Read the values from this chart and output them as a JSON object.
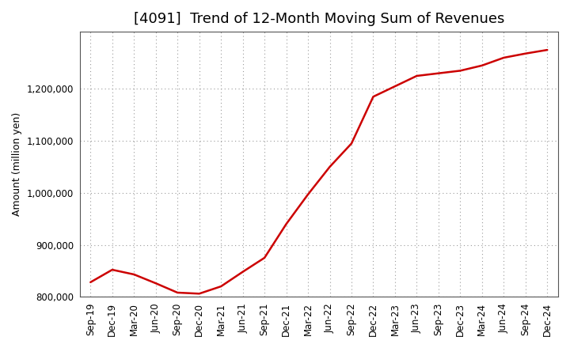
{
  "title": "[4091]  Trend of 12-Month Moving Sum of Revenues",
  "ylabel": "Amount (million yen)",
  "line_color": "#cc0000",
  "background_color": "#ffffff",
  "grid_color": "#999999",
  "x_labels": [
    "Sep-19",
    "Dec-19",
    "Mar-20",
    "Jun-20",
    "Sep-20",
    "Dec-20",
    "Mar-21",
    "Jun-21",
    "Sep-21",
    "Dec-21",
    "Mar-22",
    "Jun-22",
    "Sep-22",
    "Dec-22",
    "Mar-23",
    "Jun-23",
    "Sep-23",
    "Dec-23",
    "Mar-24",
    "Jun-24",
    "Sep-24",
    "Dec-24"
  ],
  "y_values": [
    828000,
    852000,
    843000,
    826000,
    808000,
    806000,
    820000,
    848000,
    875000,
    940000,
    997000,
    1050000,
    1095000,
    1185000,
    1205000,
    1225000,
    1230000,
    1235000,
    1245000,
    1260000,
    1268000,
    1275000
  ],
  "ylim": [
    800000,
    1310000
  ],
  "yticks": [
    800000,
    900000,
    1000000,
    1100000,
    1200000
  ],
  "title_fontsize": 13,
  "label_fontsize": 9,
  "tick_fontsize": 8.5
}
